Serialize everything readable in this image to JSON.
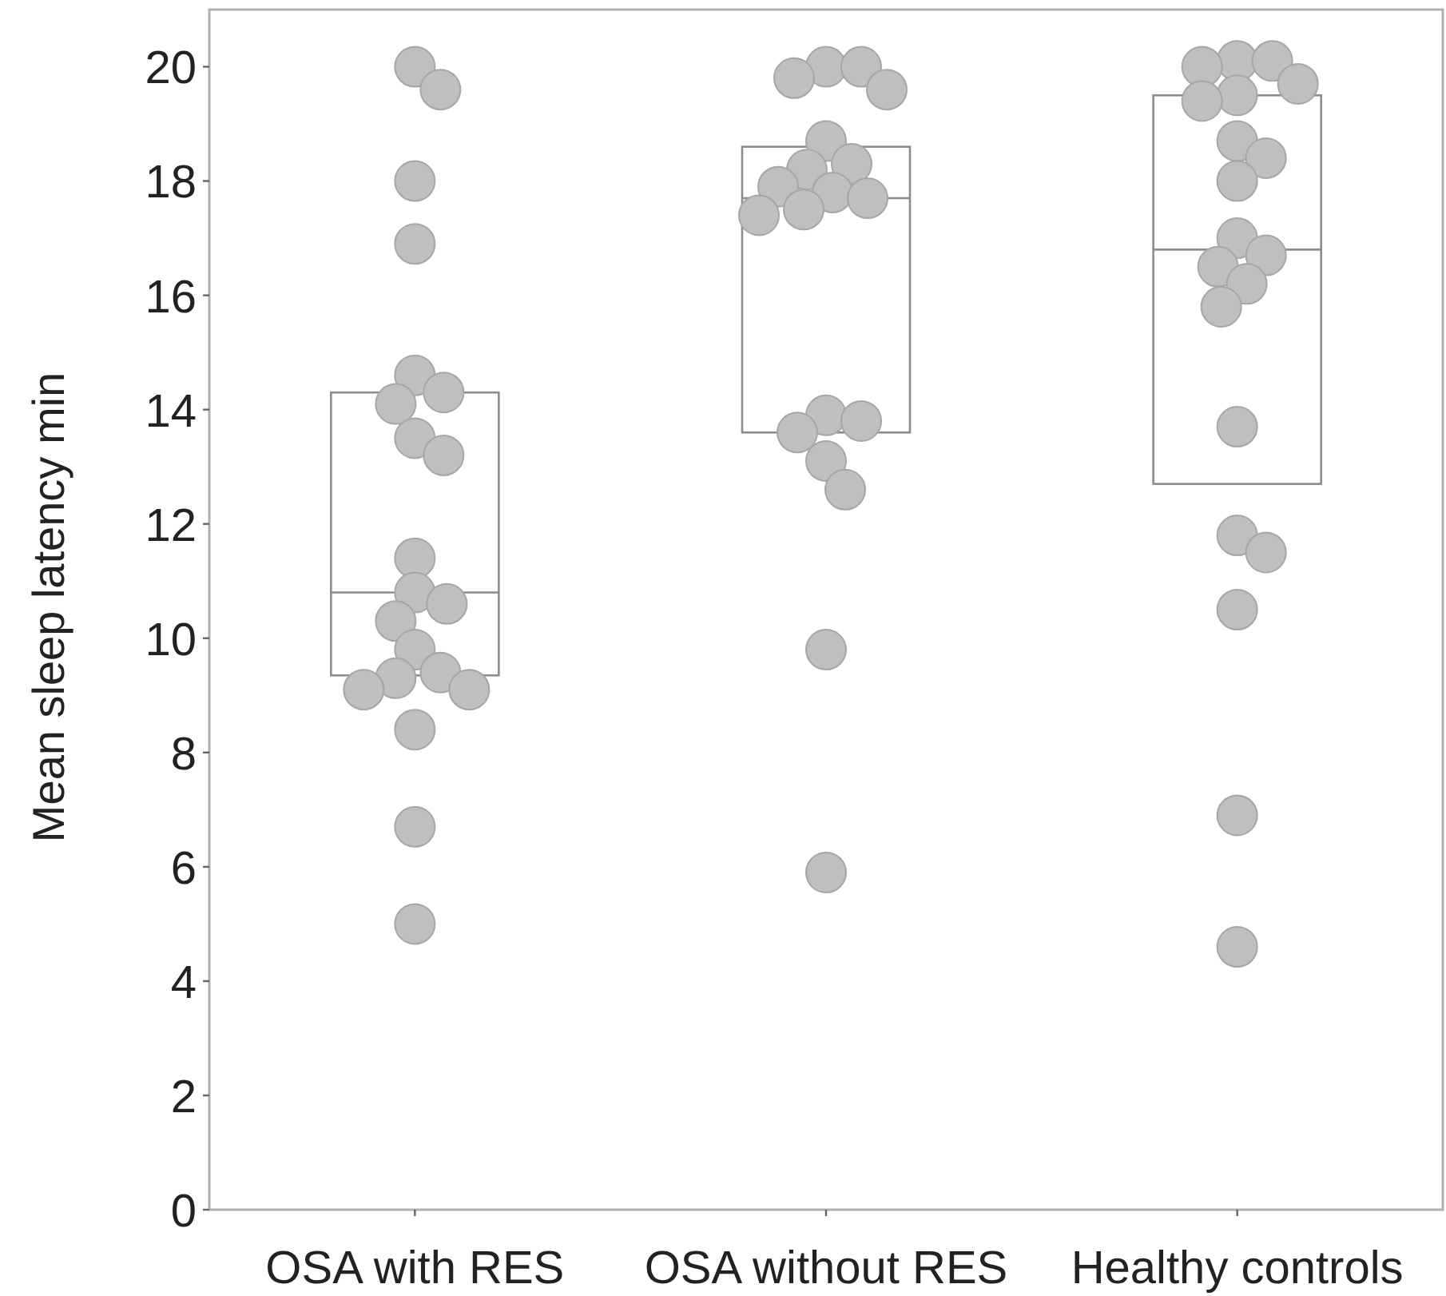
{
  "chart_data": {
    "type": "box",
    "ylabel": "Mean sleep latency min",
    "categories": [
      "OSA with RES",
      "OSA without RES",
      "Healthy controls"
    ],
    "ylim": [
      0,
      21
    ],
    "yticks": [
      0,
      2,
      4,
      6,
      8,
      10,
      12,
      14,
      16,
      18,
      20
    ],
    "marker": "circle",
    "series": [
      {
        "type": "box",
        "color": "#8c8c8c",
        "boxes": [
          {
            "low": 9.35,
            "q1": 9.35,
            "median": 10.8,
            "q3": 14.3,
            "high": 14.3
          },
          {
            "low": 13.6,
            "q1": 13.6,
            "median": 17.7,
            "q3": 18.6,
            "high": 18.6
          },
          {
            "low": 12.7,
            "q1": 12.7,
            "median": 16.8,
            "q3": 19.5,
            "high": 19.5
          }
        ]
      },
      {
        "type": "scatter",
        "color": "#bfbfbf",
        "x": [
          "OSA with RES",
          "OSA with RES",
          "OSA with RES",
          "OSA with RES",
          "OSA with RES",
          "OSA with RES",
          "OSA with RES",
          "OSA with RES",
          "OSA with RES",
          "OSA with RES",
          "OSA with RES",
          "OSA with RES",
          "OSA with RES",
          "OSA with RES",
          "OSA with RES",
          "OSA with RES",
          "OSA with RES",
          "OSA with RES",
          "OSA with RES",
          "OSA with RES",
          "OSA with RES",
          "OSA without RES",
          "OSA without RES",
          "OSA without RES",
          "OSA without RES",
          "OSA without RES",
          "OSA without RES",
          "OSA without RES",
          "OSA without RES",
          "OSA without RES",
          "OSA without RES",
          "OSA without RES",
          "OSA without RES",
          "OSA without RES",
          "OSA without RES",
          "OSA without RES",
          "OSA without RES",
          "OSA without RES",
          "OSA without RES",
          "OSA without RES",
          "Healthy controls",
          "Healthy controls",
          "Healthy controls",
          "Healthy controls",
          "Healthy controls",
          "Healthy controls",
          "Healthy controls",
          "Healthy controls",
          "Healthy controls",
          "Healthy controls",
          "Healthy controls",
          "Healthy controls",
          "Healthy controls",
          "Healthy controls",
          "Healthy controls",
          "Healthy controls",
          "Healthy controls",
          "Healthy controls",
          "Healthy controls",
          "Healthy controls"
        ],
        "values": [
          20.0,
          19.6,
          18.0,
          16.9,
          14.6,
          14.3,
          14.1,
          13.5,
          13.2,
          11.4,
          10.8,
          10.6,
          10.3,
          9.8,
          9.4,
          9.3,
          9.1,
          9.1,
          8.4,
          6.7,
          5.0,
          20.0,
          20.0,
          19.8,
          19.6,
          18.7,
          18.3,
          18.2,
          17.9,
          17.8,
          17.7,
          17.5,
          17.4,
          13.9,
          13.8,
          13.6,
          13.1,
          12.6,
          9.8,
          5.9,
          20.1,
          20.1,
          20.0,
          19.7,
          19.5,
          19.4,
          18.7,
          18.4,
          18.0,
          17.0,
          16.7,
          16.5,
          16.2,
          15.8,
          13.7,
          11.8,
          11.5,
          10.5,
          6.9,
          4.6
        ]
      }
    ]
  }
}
